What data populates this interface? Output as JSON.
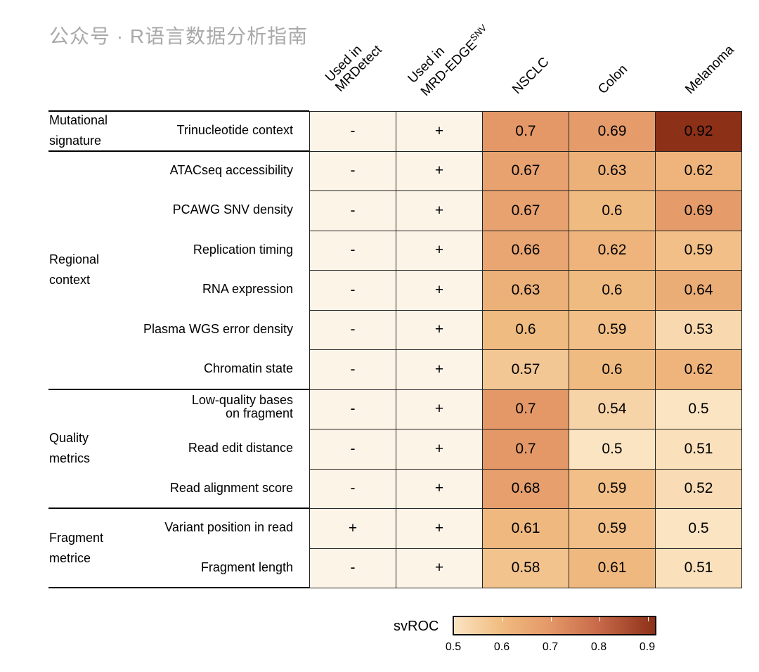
{
  "chart_data": {
    "type": "heatmap",
    "columns": [
      "Used in MRDetect",
      "Used in MRD-EDGE",
      "NSCLC",
      "Colon",
      "Melanoma"
    ],
    "column_superscripts": {
      "1": "SNV"
    },
    "groups": [
      {
        "label": "Mutational\nsignature",
        "rows": [
          0
        ]
      },
      {
        "label": "Regional\ncontext",
        "rows": [
          1,
          2,
          3,
          4,
          5,
          6
        ]
      },
      {
        "label": "Quality\nmetrics",
        "rows": [
          7,
          8,
          9
        ]
      },
      {
        "label": "Fragment\nmetrice",
        "rows": [
          10,
          11
        ]
      }
    ],
    "rows": [
      {
        "label": "Trinucleotide context",
        "mrdetect": "-",
        "edge": "+",
        "values": [
          0.7,
          0.69,
          0.92
        ]
      },
      {
        "label": "ATACseq accessibility",
        "mrdetect": "-",
        "edge": "+",
        "values": [
          0.67,
          0.63,
          0.62
        ]
      },
      {
        "label": "PCAWG SNV density",
        "mrdetect": "-",
        "edge": "+",
        "values": [
          0.67,
          0.6,
          0.69
        ]
      },
      {
        "label": "Replication timing",
        "mrdetect": "-",
        "edge": "+",
        "values": [
          0.66,
          0.62,
          0.59
        ]
      },
      {
        "label": "RNA expression",
        "mrdetect": "-",
        "edge": "+",
        "values": [
          0.63,
          0.6,
          0.64
        ]
      },
      {
        "label": "Plasma WGS error density",
        "mrdetect": "-",
        "edge": "+",
        "values": [
          0.6,
          0.59,
          0.53
        ]
      },
      {
        "label": "Chromatin state",
        "mrdetect": "-",
        "edge": "+",
        "values": [
          0.57,
          0.6,
          0.62
        ]
      },
      {
        "label": "Low-quality bases\non fragment",
        "mrdetect": "-",
        "edge": "+",
        "values": [
          0.7,
          0.54,
          0.5
        ]
      },
      {
        "label": "Read edit distance",
        "mrdetect": "-",
        "edge": "+",
        "values": [
          0.7,
          0.5,
          0.51
        ]
      },
      {
        "label": "Read alignment score",
        "mrdetect": "-",
        "edge": "+",
        "values": [
          0.68,
          0.59,
          0.52
        ]
      },
      {
        "label": "Variant position in read",
        "mrdetect": "+",
        "edge": "+",
        "values": [
          0.61,
          0.59,
          0.5
        ]
      },
      {
        "label": "Fragment length",
        "mrdetect": "-",
        "edge": "+",
        "values": [
          0.58,
          0.61,
          0.51
        ]
      }
    ],
    "legend": {
      "title": "svROC",
      "range": [
        0.5,
        0.92
      ],
      "ticks": [
        "0.5",
        "0.6",
        "0.7",
        "0.8",
        "0.9"
      ]
    },
    "colors": {
      "low": "#fbe4c2",
      "mid1": "#f0bb80",
      "mid2": "#e49868",
      "mid3": "#c86a4a",
      "high": "#8c3018",
      "binary_bg": "#fdf4e8"
    }
  },
  "watermark": "公众号 · R语言数据分析指南"
}
